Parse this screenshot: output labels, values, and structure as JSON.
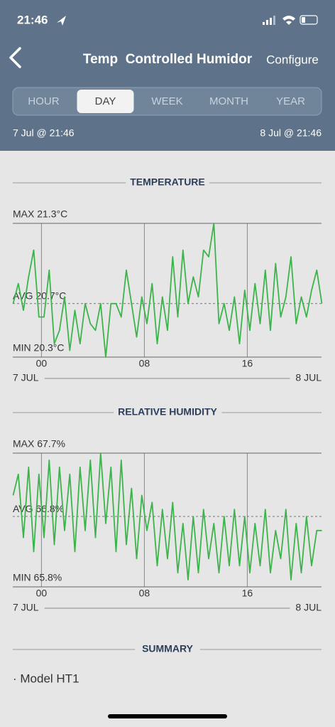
{
  "status": {
    "time": "21:46"
  },
  "header": {
    "title": "Temp  Controlled Humidor",
    "action": "Configure"
  },
  "tabs": [
    {
      "label": "HOUR"
    },
    {
      "label": "DAY",
      "selected": true
    },
    {
      "label": "WEEK"
    },
    {
      "label": "MONTH"
    },
    {
      "label": "YEAR"
    }
  ],
  "range": {
    "start": "7 Jul @ 21:46",
    "end": "8 Jul @ 21:46"
  },
  "chart_data": [
    {
      "type": "line",
      "title": "TEMPERATURE",
      "color": "#3cb44b",
      "x": [
        -2.2,
        -1.8,
        -1.4,
        -1,
        -0.6,
        -0.2,
        0.2,
        0.6,
        1,
        1.4,
        1.8,
        2.2,
        2.6,
        3,
        3.4,
        3.8,
        4.2,
        4.6,
        5,
        5.4,
        5.8,
        6.2,
        6.6,
        7,
        7.4,
        7.8,
        8.2,
        8.6,
        9,
        9.4,
        9.8,
        10.2,
        10.6,
        11,
        11.4,
        11.8,
        12.2,
        12.6,
        13,
        13.4,
        13.8,
        14.2,
        14.6,
        15,
        15.4,
        15.8,
        16.2,
        16.6,
        17,
        17.4,
        17.8,
        18.2,
        18.6,
        19,
        19.4,
        19.8,
        20.2,
        20.6,
        21,
        21.4,
        21.8
      ],
      "series": [
        {
          "color": "#3cb44b",
          "values": [
            20.7,
            20.85,
            20.65,
            20.9,
            21.1,
            20.6,
            20.6,
            20.95,
            20.4,
            20.5,
            20.75,
            20.35,
            20.65,
            20.4,
            20.7,
            20.55,
            20.5,
            20.7,
            20.3,
            20.7,
            20.7,
            20.6,
            20.95,
            20.7,
            20.45,
            20.75,
            20.55,
            20.85,
            20.4,
            20.75,
            20.5,
            21.05,
            20.6,
            21.1,
            20.7,
            20.9,
            20.75,
            21.1,
            21.05,
            21.3,
            20.55,
            20.7,
            20.5,
            20.75,
            20.4,
            20.8,
            20.5,
            20.85,
            20.55,
            20.95,
            20.5,
            21.0,
            20.6,
            20.75,
            21.05,
            20.55,
            20.75,
            20.6,
            20.8,
            20.95,
            20.7
          ]
        }
      ],
      "xlim": [
        -2.23,
        21.77
      ],
      "xticks": [
        {
          "value": 0,
          "label": "00"
        },
        {
          "value": 8,
          "label": "08"
        },
        {
          "value": 16,
          "label": "16"
        }
      ],
      "ylim": [
        20.3,
        21.3
      ],
      "yticks": [
        {
          "value": 20.3,
          "label": "MIN 20.3°C"
        },
        {
          "value": 21.3,
          "label": "MAX 21.3°C"
        }
      ],
      "avg": {
        "value": 20.7,
        "label": "AVG 20.7°C"
      },
      "start_label": "7 JUL",
      "end_label": "8 JUL"
    },
    {
      "type": "line",
      "title": "RELATIVE HUMIDITY",
      "color": "#3cb44b",
      "x": [
        -2.2,
        -1.8,
        -1.4,
        -1,
        -0.6,
        -0.2,
        0.2,
        0.6,
        1,
        1.4,
        1.8,
        2.2,
        2.6,
        3,
        3.4,
        3.8,
        4.2,
        4.6,
        5,
        5.4,
        5.8,
        6.2,
        6.6,
        7,
        7.4,
        7.8,
        8.2,
        8.6,
        9,
        9.4,
        9.8,
        10.2,
        10.6,
        11,
        11.4,
        11.8,
        12.2,
        12.6,
        13,
        13.4,
        13.8,
        14.2,
        14.6,
        15,
        15.4,
        15.8,
        16.2,
        16.6,
        17,
        17.4,
        17.8,
        18.2,
        18.6,
        19,
        19.4,
        19.8,
        20.2,
        20.6,
        21,
        21.4,
        21.8
      ],
      "series": [
        {
          "color": "#3cb44b",
          "values": [
            67.1,
            67.4,
            66.5,
            67.5,
            66.3,
            67.4,
            66.5,
            67.6,
            66.4,
            67.5,
            66.6,
            67.4,
            66.3,
            67.5,
            66.6,
            67.6,
            66.5,
            67.7,
            66.7,
            67.5,
            66.3,
            67.6,
            66.4,
            67.2,
            66.2,
            67.1,
            66.6,
            67.0,
            66.1,
            66.9,
            66.2,
            67.0,
            66.0,
            66.7,
            65.9,
            66.8,
            66.0,
            66.9,
            66.2,
            66.7,
            66.0,
            66.8,
            66.1,
            66.9,
            66.1,
            66.8,
            66.0,
            66.7,
            66.1,
            66.9,
            66.0,
            66.6,
            66.2,
            66.9,
            65.9,
            66.7,
            66.0,
            66.8,
            66.1,
            66.6,
            66.6
          ]
        }
      ],
      "xlim": [
        -2.23,
        21.77
      ],
      "xticks": [
        {
          "value": 0,
          "label": "00"
        },
        {
          "value": 8,
          "label": "08"
        },
        {
          "value": 16,
          "label": "16"
        }
      ],
      "ylim": [
        65.8,
        67.7
      ],
      "yticks": [
        {
          "value": 65.8,
          "label": "MIN 65.8%"
        },
        {
          "value": 67.7,
          "label": "MAX 67.7%"
        }
      ],
      "avg": {
        "value": 66.8,
        "label": "AVG 66.8%"
      },
      "start_label": "7 JUL",
      "end_label": "8 JUL"
    }
  ],
  "summary": {
    "title": "SUMMARY",
    "items": [
      "· Model HT1"
    ]
  }
}
